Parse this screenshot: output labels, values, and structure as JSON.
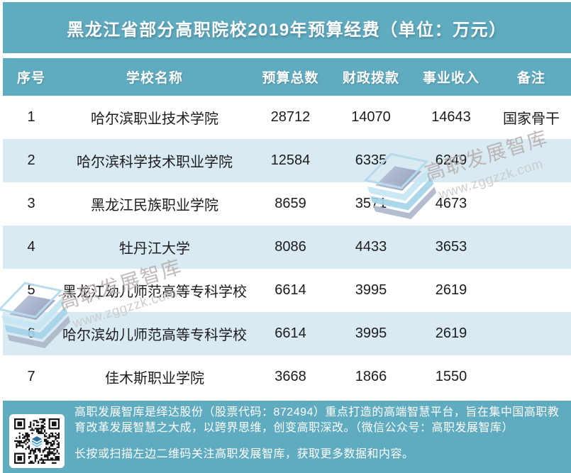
{
  "title": "黑龙江省部分高职院校2019年预算经费（单位：万元）",
  "colors": {
    "teal": "#5fabc0",
    "rowAlt": "#d9eaf2",
    "textDark": "#1c1c1c"
  },
  "watermark": {
    "brand": "高职发展智库",
    "url": "www.zggzzk.com"
  },
  "footer": {
    "about": "高职发展智库是绎达股份（股票代码：872494）重点打造的高端智慧平台，旨在集中国高职教育改革发展智慧之大成，以跨界思维，创变高职深改。（微信公众号：高职发展智库）",
    "cta": "长按或扫描左边二维码关注高职发展智库，获取更多数据和内容。"
  },
  "chart_data": {
    "type": "table",
    "title": "黑龙江省部分高职院校2019年预算经费（单位：万元）",
    "unit": "万元",
    "columns": [
      "序号",
      "学校名称",
      "预算总数",
      "财政拨款",
      "事业收入",
      "备注"
    ],
    "rows": [
      [
        1,
        "哈尔滨职业技术学院",
        28712,
        14070,
        14643,
        "国家骨干"
      ],
      [
        2,
        "哈尔滨科学技术职业学院",
        12584,
        6335,
        6249,
        ""
      ],
      [
        3,
        "黑龙江民族职业学院",
        8659,
        3571,
        4673,
        ""
      ],
      [
        4,
        "牡丹江大学",
        8086,
        4433,
        3653,
        ""
      ],
      [
        5,
        "黑龙江幼儿师范高等专科学校",
        6614,
        3995,
        2619,
        ""
      ],
      [
        6,
        "哈尔滨幼儿师范高等专科学校",
        6614,
        3995,
        2619,
        ""
      ],
      [
        7,
        "佳木斯职业学院",
        3668,
        1866,
        1550,
        ""
      ]
    ]
  }
}
